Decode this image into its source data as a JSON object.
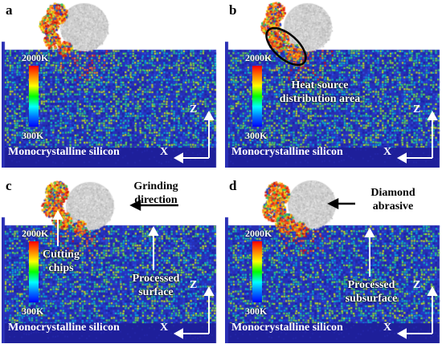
{
  "panels": {
    "a": {
      "label": "a"
    },
    "b": {
      "label": "b",
      "heat_source": "Heat source distribution area"
    },
    "c": {
      "label": "c",
      "cutting_chips": "Cutting chips",
      "processed_surface": "Processed surface",
      "grinding_direction": "Grinding direction"
    },
    "d": {
      "label": "d",
      "processed_subsurface": "Processed subsurface",
      "diamond_abrasive": "Diamond abrasive"
    }
  },
  "colorbar": {
    "max": "2000K",
    "min": "300K"
  },
  "substrate_label": "Monocrystalline silicon",
  "axes": {
    "x": "X",
    "z": "Z"
  },
  "colors": {
    "substrate": "#2a2fb4",
    "abrasive": "#cfcfcf",
    "hot": "#e03020"
  }
}
